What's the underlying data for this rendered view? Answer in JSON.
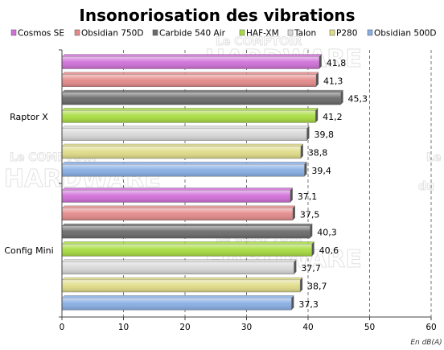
{
  "chart_data": {
    "type": "bar",
    "orientation": "horizontal",
    "title": "Insonoriosation des vibrations",
    "unit_label": "En dB(A)",
    "categories": [
      "Raptor X",
      "Config Mini"
    ],
    "xlim": [
      0,
      60
    ],
    "xticks": [
      "0",
      "10",
      "20",
      "30",
      "40",
      "50",
      "60"
    ],
    "grid": true,
    "legend_position": "top",
    "series": [
      {
        "name": "Cosmos SE",
        "color": "#d070d8",
        "values": [
          41.8,
          37.1
        ],
        "labels": [
          "41,8",
          "37,1"
        ]
      },
      {
        "name": "Obsidian 750D",
        "color": "#e48a8a",
        "values": [
          41.3,
          37.5
        ],
        "labels": [
          "41,3",
          "37,5"
        ]
      },
      {
        "name": "Carbide 540 Air",
        "color": "#6a6a6a",
        "values": [
          45.3,
          40.3
        ],
        "labels": [
          "45,3",
          "40,3"
        ]
      },
      {
        "name": "HAF-XM",
        "color": "#a8dc40",
        "values": [
          41.2,
          40.6
        ],
        "labels": [
          "41,2",
          "40,6"
        ]
      },
      {
        "name": "Talon",
        "color": "#d8d8d8",
        "values": [
          39.8,
          37.7
        ],
        "labels": [
          "39,8",
          "37,7"
        ]
      },
      {
        "name": "P280",
        "color": "#e0dc88",
        "values": [
          38.8,
          38.7
        ],
        "labels": [
          "38,8",
          "38,7"
        ]
      },
      {
        "name": "Obsidian 500D",
        "color": "#88aee4",
        "values": [
          39.4,
          37.3
        ],
        "labels": [
          "39,4",
          "37,3"
        ]
      }
    ]
  },
  "watermark": {
    "line1": "Le COMPTOIR",
    "line2": "HARDWARE",
    "line3": "du"
  }
}
